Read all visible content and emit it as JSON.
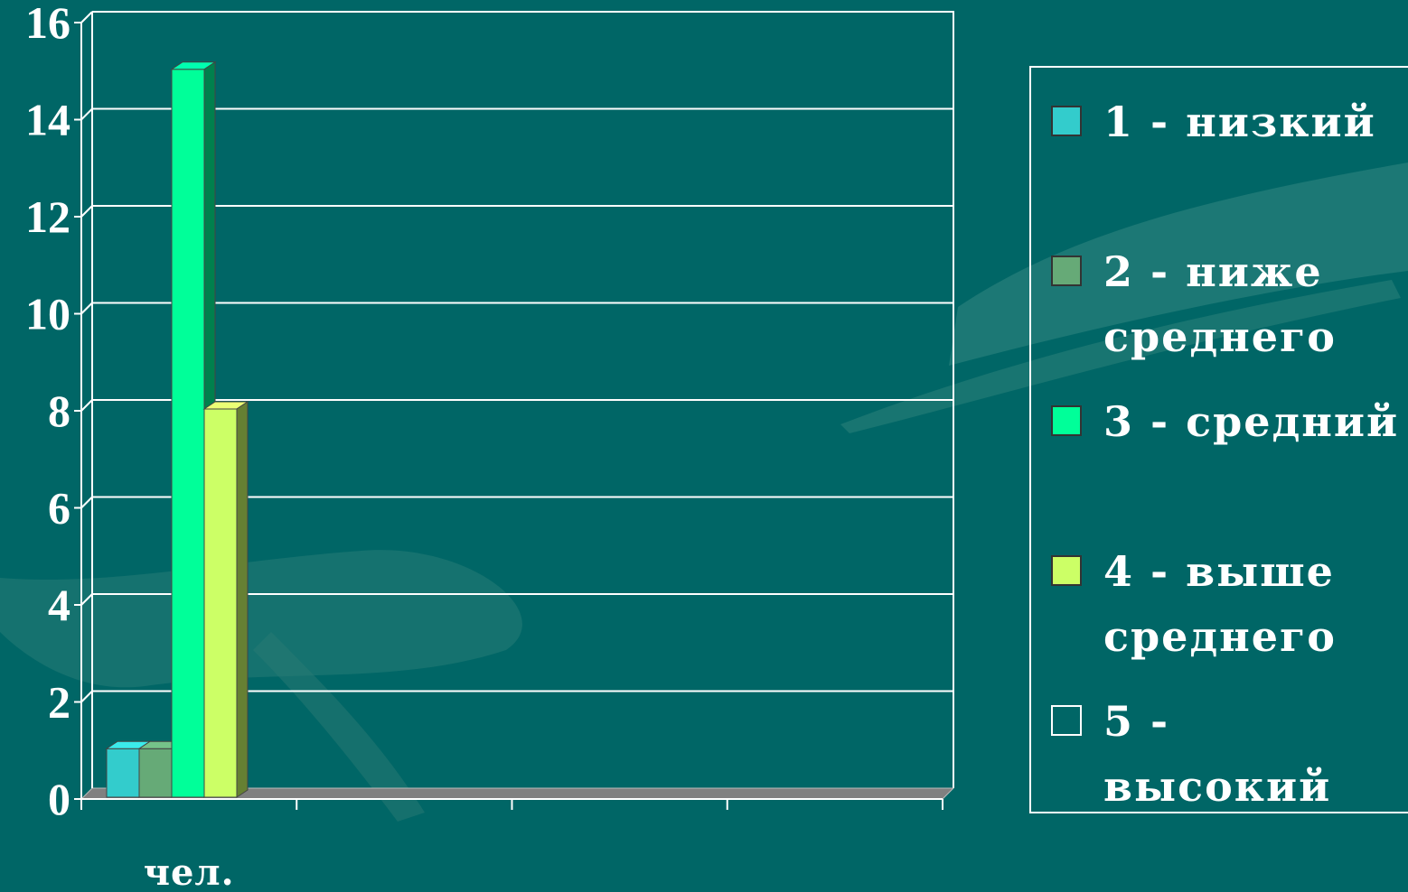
{
  "chart_data": {
    "type": "bar",
    "style": "3d-clustered",
    "categories": [
      "чел."
    ],
    "series": [
      {
        "name": "1 - низкий",
        "values": [
          1
        ],
        "color": "#33CCCC"
      },
      {
        "name": "2 - ниже среднего",
        "values": [
          1
        ],
        "color": "#66AA77"
      },
      {
        "name": "3 - средний",
        "values": [
          15
        ],
        "color": "#00FF99"
      },
      {
        "name": "4 - выше среднего",
        "values": [
          8
        ],
        "color": "#CCFF66"
      },
      {
        "name": "5 - высокий",
        "values": [
          0
        ],
        "color": "#006666"
      }
    ],
    "yticks": [
      "0",
      "2",
      "4",
      "6",
      "8",
      "10",
      "12",
      "14",
      "16"
    ],
    "ylim": [
      0,
      16
    ],
    "grid": true,
    "legend": "right",
    "title": "",
    "xlabel": "",
    "ylabel": ""
  },
  "colors": {
    "background": "#006666",
    "gridline": "#ffffff",
    "floor": "#808080"
  }
}
